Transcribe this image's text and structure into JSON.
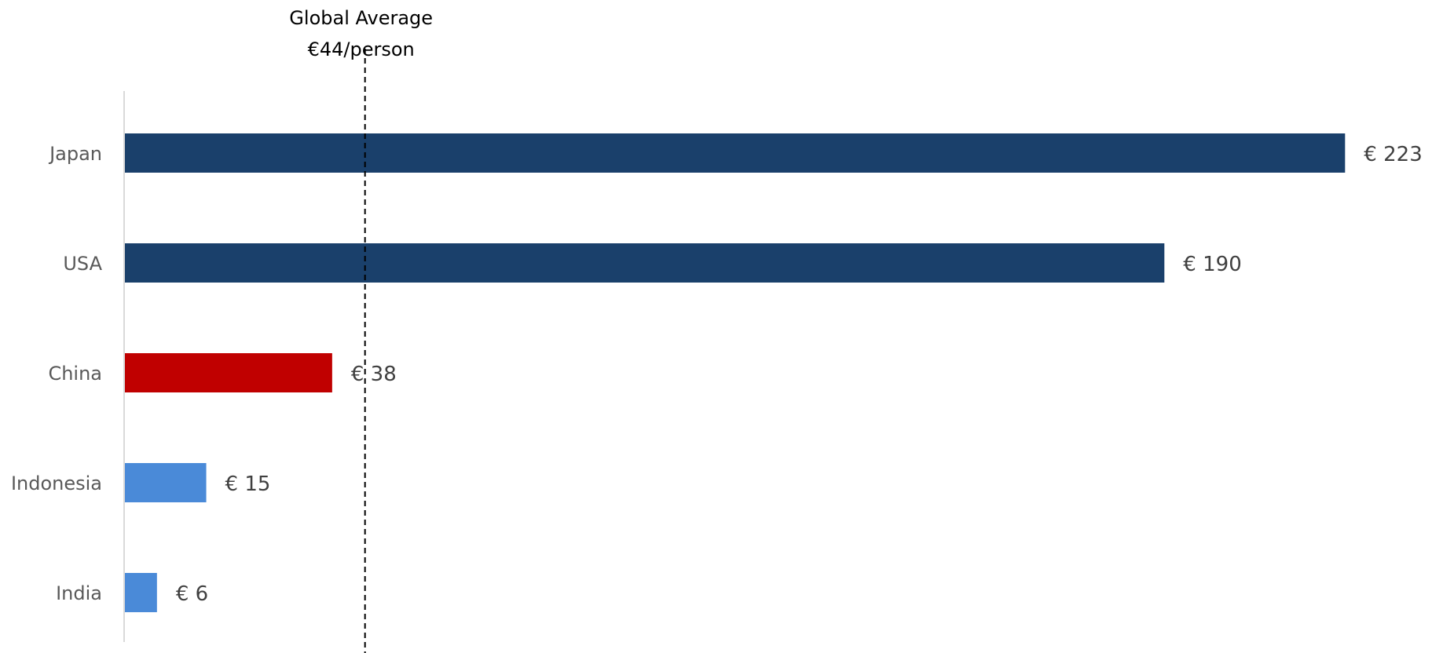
{
  "chart_data": {
    "type": "bar",
    "orientation": "horizontal",
    "categories": [
      "Japan",
      "USA",
      "China",
      "Indonesia",
      "India"
    ],
    "values": [
      223,
      190,
      38,
      15,
      6
    ],
    "value_labels": [
      "€ 223",
      "€ 190",
      "€ 38",
      "€ 15",
      "€ 6"
    ],
    "bar_colors": [
      "#1a406b",
      "#1a406b",
      "#c00000",
      "#4a8ad8",
      "#4a8ad8"
    ],
    "reference_line": {
      "value": 44,
      "style": "dashed",
      "color": "#000000",
      "label_lines": [
        "Global Average",
        "€44/person"
      ]
    },
    "xlim": [
      0,
      223
    ],
    "grid": false,
    "legend": false
  }
}
